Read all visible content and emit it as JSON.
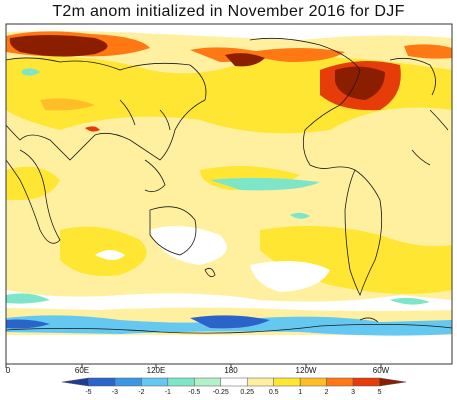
{
  "title": "T2m anom initialized in November 2016 for DJF",
  "longitude_labels": [
    "0",
    "60E",
    "120E",
    "180",
    "120W",
    "60W"
  ],
  "colorbar": {
    "levels": [
      "-5",
      "-3",
      "-2",
      "-1",
      "-0.5",
      "-0.25",
      "0.25",
      "0.5",
      "1",
      "2",
      "3",
      "5"
    ],
    "colors": [
      "#1e3c96",
      "#2a64c8",
      "#3c96e6",
      "#64c8f0",
      "#7ee6c8",
      "#b4f0c8",
      "#ffffff",
      "#fff0a0",
      "#ffe632",
      "#ffbe28",
      "#ff7814",
      "#e63c0a",
      "#8c1e00"
    ]
  },
  "palette": {
    "coast": "#1a1a1a",
    "frame": "#333333"
  }
}
